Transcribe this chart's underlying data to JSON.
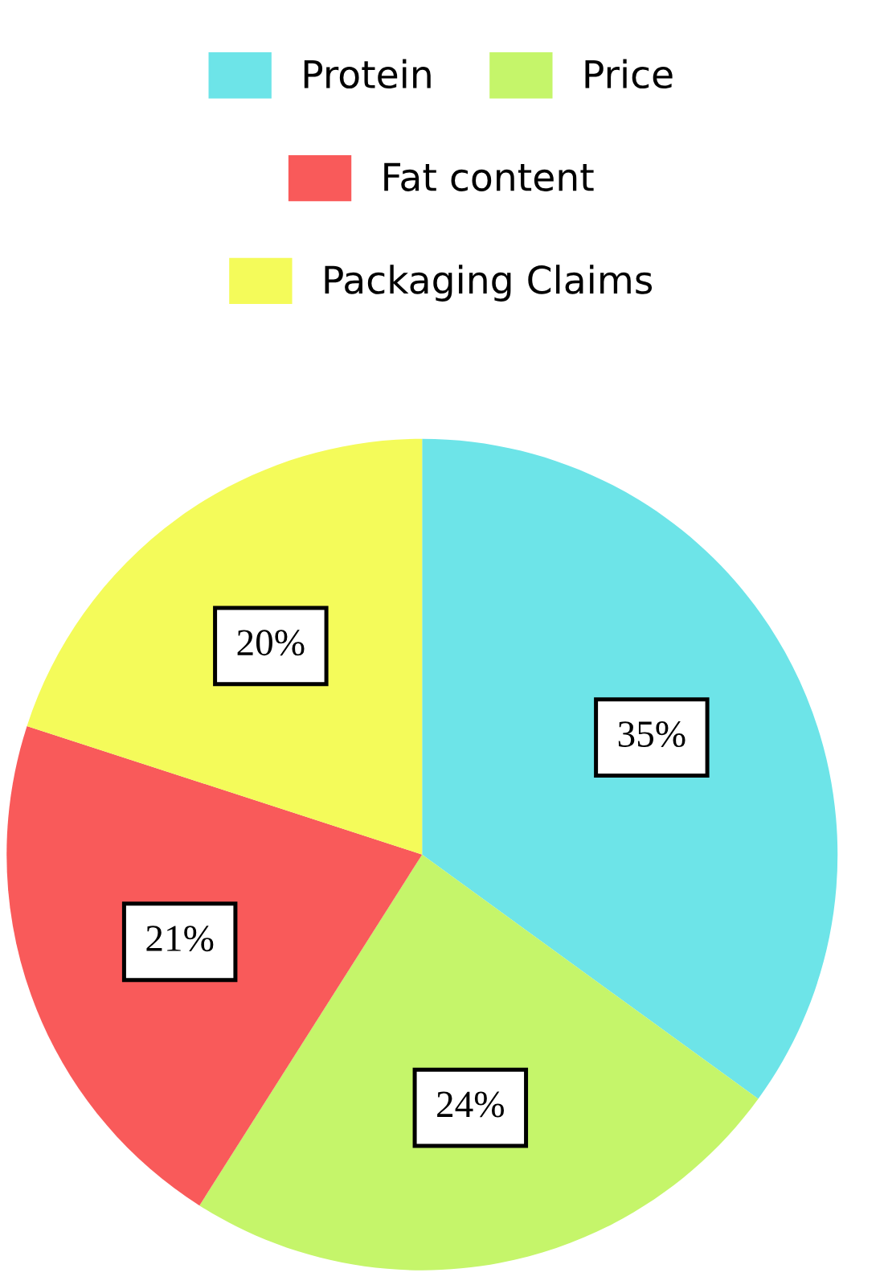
{
  "chart_data": {
    "type": "pie",
    "categories": [
      "Protein",
      "Price",
      "Fat content",
      "Packaging Claims"
    ],
    "values": [
      35,
      24,
      21,
      20
    ],
    "colors": [
      "#6de4e8",
      "#c5f56a",
      "#f95a5a",
      "#f4fb5a"
    ],
    "value_labels": [
      "35%",
      "24%",
      "21%",
      "20%"
    ],
    "legend": "top"
  }
}
